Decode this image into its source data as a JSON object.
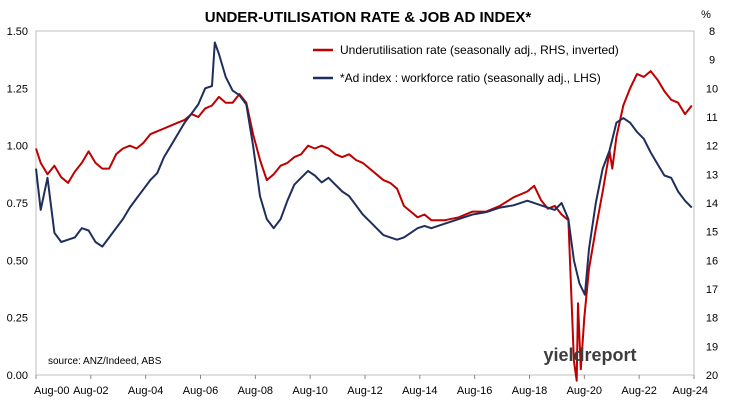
{
  "chart_data": {
    "type": "line",
    "title": "UNDER-UTILISATION RATE & JOB AD INDEX*",
    "right_axis_unit": "%",
    "source": "source: ANZ/Indeed, ABS",
    "brand": "yieldreport",
    "legend_placement": "top-right",
    "grid": false,
    "left_axis": {
      "ylim": [
        0.0,
        1.5
      ],
      "ticks": [
        "0.00",
        "0.25",
        "0.50",
        "0.75",
        "1.00",
        "1.25",
        "1.50"
      ]
    },
    "right_axis": {
      "ylim": [
        8,
        20
      ],
      "inverted": true,
      "ticks": [
        "8",
        "9",
        "10",
        "11",
        "12",
        "13",
        "14",
        "15",
        "16",
        "17",
        "18",
        "19",
        "20"
      ]
    },
    "x_ticks": [
      "Aug-00",
      "Aug-02",
      "Aug-04",
      "Aug-06",
      "Aug-08",
      "Aug-10",
      "Aug-12",
      "Aug-14",
      "Aug-16",
      "Aug-18",
      "Aug-20",
      "Aug-22",
      "Aug-24"
    ],
    "x_range": [
      2000.58,
      2024.58
    ],
    "colors": {
      "underutilisation": "#c00000",
      "ad_index": "#1f2f5c"
    },
    "series": [
      {
        "name": "Underutilisation rate (seasonally adj., RHS, inverted)",
        "axis": "right",
        "x": [
          2000.58,
          2000.75,
          2001.0,
          2001.25,
          2001.5,
          2001.75,
          2002.0,
          2002.25,
          2002.5,
          2002.75,
          2003.0,
          2003.25,
          2003.5,
          2003.75,
          2004.0,
          2004.25,
          2004.5,
          2004.75,
          2005.0,
          2005.25,
          2005.5,
          2005.75,
          2006.0,
          2006.25,
          2006.5,
          2006.75,
          2007.0,
          2007.25,
          2007.5,
          2007.75,
          2008.0,
          2008.25,
          2008.5,
          2008.75,
          2009.0,
          2009.25,
          2009.5,
          2009.75,
          2010.0,
          2010.25,
          2010.5,
          2010.75,
          2011.0,
          2011.25,
          2011.5,
          2011.75,
          2012.0,
          2012.25,
          2012.5,
          2012.75,
          2013.0,
          2013.25,
          2013.5,
          2013.75,
          2014.0,
          2014.25,
          2014.5,
          2014.75,
          2015.0,
          2015.5,
          2016.0,
          2016.5,
          2017.0,
          2017.5,
          2018.0,
          2018.5,
          2018.75,
          2019.0,
          2019.25,
          2019.5,
          2019.75,
          2020.0,
          2020.2,
          2020.3,
          2020.35,
          2020.45,
          2020.58,
          2020.75,
          2021.0,
          2021.25,
          2021.5,
          2021.6,
          2021.75,
          2022.0,
          2022.25,
          2022.5,
          2022.75,
          2023.0,
          2023.25,
          2023.5,
          2023.75,
          2024.0,
          2024.25,
          2024.5
        ],
        "y": [
          12.1,
          12.6,
          13.0,
          12.7,
          13.1,
          13.3,
          12.9,
          12.6,
          12.2,
          12.6,
          12.8,
          12.8,
          12.3,
          12.1,
          12.0,
          12.1,
          11.9,
          11.6,
          11.5,
          11.4,
          11.3,
          11.2,
          11.1,
          10.9,
          11.0,
          10.7,
          10.6,
          10.3,
          10.5,
          10.5,
          10.2,
          10.5,
          11.6,
          12.5,
          13.2,
          13.0,
          12.7,
          12.6,
          12.4,
          12.3,
          12.0,
          12.1,
          12.0,
          12.1,
          12.3,
          12.4,
          12.3,
          12.5,
          12.6,
          12.8,
          13.0,
          13.2,
          13.3,
          13.5,
          14.1,
          14.3,
          14.5,
          14.4,
          14.6,
          14.6,
          14.5,
          14.3,
          14.3,
          14.1,
          13.8,
          13.6,
          13.4,
          13.9,
          14.2,
          14.1,
          14.4,
          14.6,
          19.5,
          20.2,
          17.5,
          19.8,
          18.0,
          16.3,
          14.9,
          13.6,
          12.2,
          12.8,
          11.7,
          10.6,
          10.0,
          9.5,
          9.6,
          9.4,
          9.7,
          10.1,
          10.4,
          10.5,
          10.9,
          10.6
        ]
      },
      {
        "name": "*Ad index : workforce ratio (seasonally adj., LHS)",
        "axis": "left",
        "x": [
          2000.58,
          2000.75,
          2001.0,
          2001.25,
          2001.5,
          2001.75,
          2002.0,
          2002.25,
          2002.5,
          2002.75,
          2003.0,
          2003.25,
          2003.5,
          2003.75,
          2004.0,
          2004.25,
          2004.5,
          2004.75,
          2005.0,
          2005.25,
          2005.5,
          2005.75,
          2006.0,
          2006.25,
          2006.5,
          2006.75,
          2007.0,
          2007.1,
          2007.25,
          2007.5,
          2007.75,
          2008.0,
          2008.25,
          2008.5,
          2008.75,
          2009.0,
          2009.25,
          2009.5,
          2009.75,
          2010.0,
          2010.25,
          2010.5,
          2010.75,
          2011.0,
          2011.25,
          2011.5,
          2011.75,
          2012.0,
          2012.25,
          2012.5,
          2012.75,
          2013.0,
          2013.25,
          2013.5,
          2013.75,
          2014.0,
          2014.25,
          2014.5,
          2014.75,
          2015.0,
          2015.5,
          2016.0,
          2016.5,
          2017.0,
          2017.5,
          2018.0,
          2018.5,
          2019.0,
          2019.5,
          2019.75,
          2020.0,
          2020.2,
          2020.4,
          2020.6,
          2020.75,
          2021.0,
          2021.25,
          2021.5,
          2021.75,
          2022.0,
          2022.25,
          2022.5,
          2022.75,
          2023.0,
          2023.25,
          2023.5,
          2023.75,
          2024.0,
          2024.25,
          2024.5
        ],
        "y": [
          0.9,
          0.72,
          0.86,
          0.62,
          0.58,
          0.59,
          0.6,
          0.64,
          0.63,
          0.58,
          0.56,
          0.6,
          0.64,
          0.68,
          0.73,
          0.77,
          0.81,
          0.85,
          0.88,
          0.95,
          1.0,
          1.05,
          1.1,
          1.14,
          1.18,
          1.25,
          1.26,
          1.45,
          1.4,
          1.3,
          1.24,
          1.22,
          1.18,
          1.0,
          0.78,
          0.68,
          0.64,
          0.68,
          0.76,
          0.83,
          0.86,
          0.89,
          0.87,
          0.84,
          0.86,
          0.83,
          0.8,
          0.78,
          0.74,
          0.7,
          0.67,
          0.64,
          0.61,
          0.6,
          0.59,
          0.6,
          0.62,
          0.64,
          0.65,
          0.64,
          0.66,
          0.68,
          0.7,
          0.71,
          0.73,
          0.74,
          0.76,
          0.74,
          0.72,
          0.75,
          0.68,
          0.5,
          0.4,
          0.35,
          0.55,
          0.75,
          0.9,
          0.98,
          1.1,
          1.12,
          1.1,
          1.06,
          1.03,
          0.97,
          0.92,
          0.87,
          0.86,
          0.8,
          0.76,
          0.73
        ]
      }
    ]
  }
}
